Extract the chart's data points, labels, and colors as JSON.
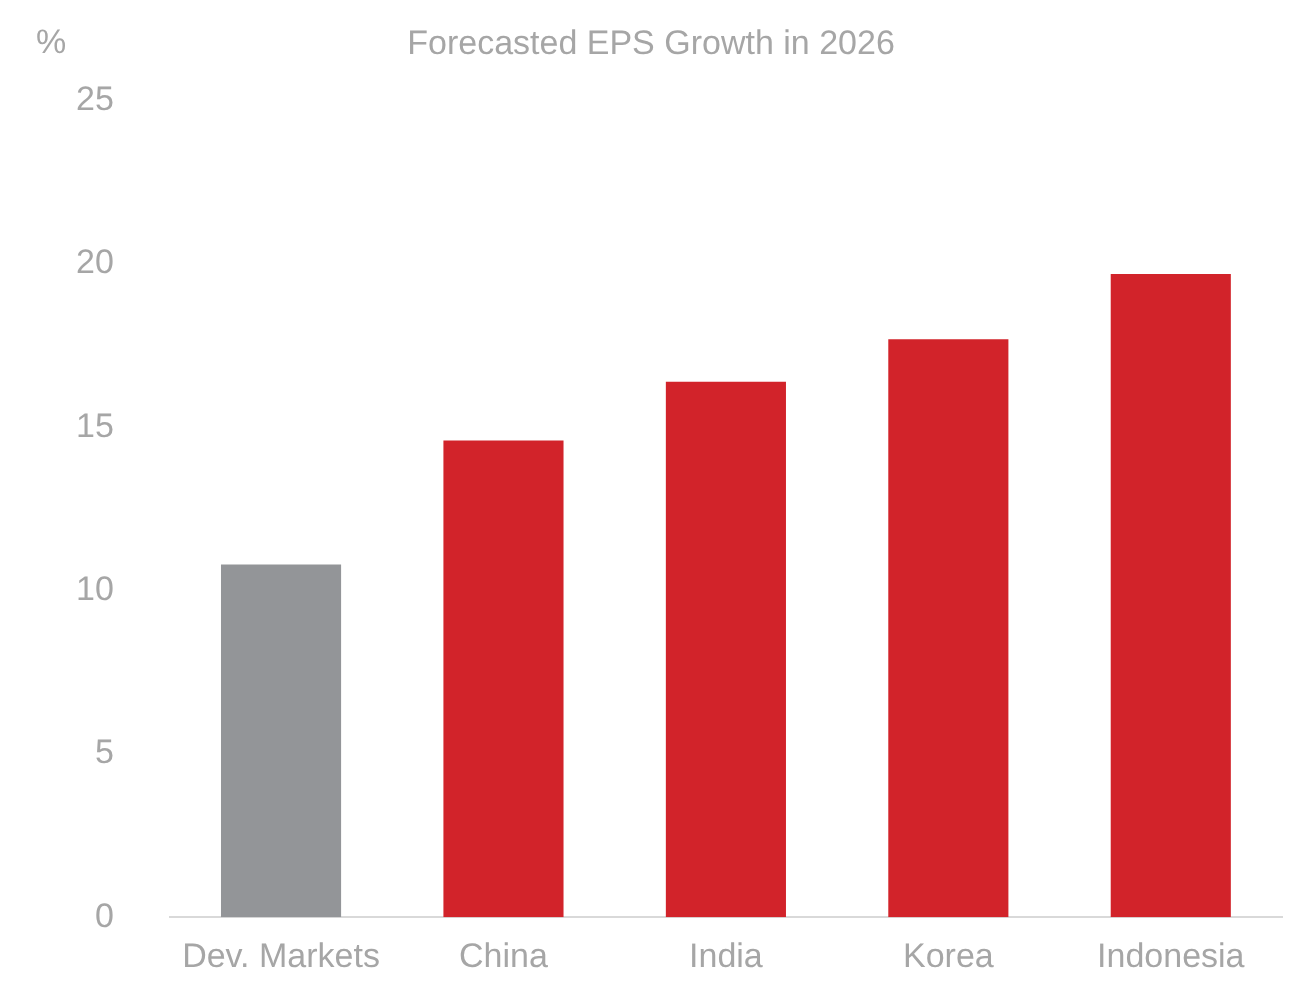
{
  "chart_data": {
    "type": "bar",
    "title": "Forecasted EPS Growth in 2026",
    "ylabel": "%",
    "categories": [
      "Dev. Markets",
      "China",
      "India",
      "Korea",
      "Indonesia"
    ],
    "values": [
      10.8,
      14.6,
      16.4,
      17.7,
      19.7
    ],
    "colors": [
      "#939598",
      "#d2232a",
      "#d2232a",
      "#d2232a",
      "#d2232a"
    ],
    "ylim": [
      0,
      25
    ],
    "yticks": [
      0,
      5,
      10,
      15,
      20,
      25
    ],
    "grid": false,
    "legend": false
  }
}
